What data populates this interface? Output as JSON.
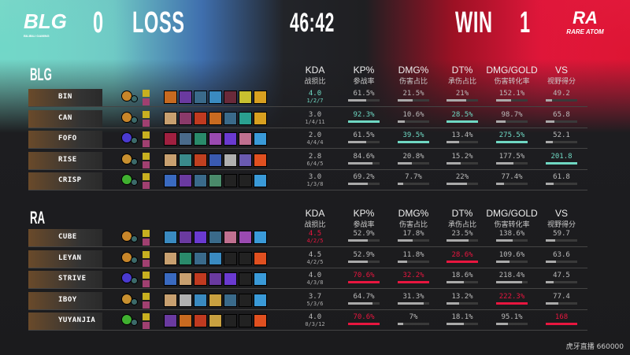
{
  "header": {
    "left_team_logo": "BLG",
    "left_team_logo_sub": "BILIBILI GAMING",
    "left_score": "0",
    "left_result": "LOSS",
    "game_time": "46:42",
    "right_result": "WIN",
    "right_score": "1",
    "right_team_logo": "RA",
    "right_team_logo_sub": "RARE ATOM"
  },
  "columns": [
    {
      "title": "KDA",
      "subtitle": "战损比"
    },
    {
      "title": "KP%",
      "subtitle": "参战率"
    },
    {
      "title": "DMG%",
      "subtitle": "伤害占比"
    },
    {
      "title": "DT%",
      "subtitle": "承伤占比"
    },
    {
      "title": "DMG/GOLD",
      "subtitle": "伤害转化率"
    },
    {
      "title": "VS",
      "subtitle": "视野得分"
    }
  ],
  "colors": {
    "blg_accent": "#6fd8c3",
    "ra_accent": "#e8163f",
    "bar": "#a8a8a8"
  },
  "teams": [
    {
      "name": "BLG",
      "accent": "#6fd8c3",
      "players": [
        {
          "name": "BIN",
          "kda": "4.0",
          "kda_detail": "1/2/7",
          "kp": "61.5%",
          "dmg": "21.5%",
          "dt": "21%",
          "dmg_gold": "152.1%",
          "vs": "49.2",
          "rune_color": "#c8862a",
          "items": [
            "#c86a20",
            "#6a3aa0",
            "#3a6a8a",
            "#3a8ac0",
            "#6a2a3a",
            "#c8c030",
            "#d8a020"
          ]
        },
        {
          "name": "CAN",
          "kda": "3.0",
          "kda_detail": "1/4/11",
          "kp": "92.3%",
          "dmg": "10.6%",
          "dt": "28.5%",
          "dmg_gold": "98.7%",
          "vs": "65.8",
          "rune_color": "#c8862a",
          "items": [
            "#c8a070",
            "#8a3a6a",
            "#c03a20",
            "#c86a20",
            "#3a6a8a",
            "#2aa090",
            "#d8a020"
          ]
        },
        {
          "name": "FOFO",
          "kda": "2.0",
          "kda_detail": "4/4/4",
          "kp": "61.5%",
          "dmg": "39.5%",
          "dt": "13.4%",
          "dmg_gold": "275.5%",
          "vs": "52.1",
          "rune_color": "#4a3ad0",
          "items": [
            "#a02040",
            "#4a6a8a",
            "#2a8a6a",
            "#9a4ab0",
            "#6a3ad0",
            "#c07090",
            "#3a9ad8"
          ]
        },
        {
          "name": "RISE",
          "kda": "2.8",
          "kda_detail": "6/4/5",
          "kp": "84.6%",
          "dmg": "20.8%",
          "dt": "15.2%",
          "dmg_gold": "177.5%",
          "vs": "201.8",
          "rune_color": "#c89030",
          "items": [
            "#c8a070",
            "#3a8a8a",
            "#c04020",
            "#3a5ab0",
            "#b0b0b0",
            "#6a5ab0",
            "#e05020"
          ]
        },
        {
          "name": "CRISP",
          "kda": "3.0",
          "kda_detail": "1/3/8",
          "kp": "69.2%",
          "dmg": "7.7%",
          "dt": "22%",
          "dmg_gold": "77.4%",
          "vs": "61.8",
          "rune_color": "#40b030",
          "items": [
            "#3a6ac0",
            "#6a3aa0",
            "#3a6a8a",
            "#4a8a6a",
            "#222",
            "#222",
            "#3a9ad8"
          ]
        }
      ]
    },
    {
      "name": "RA",
      "accent": "#e8163f",
      "players": [
        {
          "name": "CUBE",
          "kda": "4.5",
          "kda_detail": "4/2/5",
          "kp": "52.9%",
          "dmg": "17.8%",
          "dt": "23.5%",
          "dmg_gold": "138.6%",
          "vs": "59.7",
          "rune_color": "#c8862a",
          "items": [
            "#3a8ac0",
            "#6a3aa0",
            "#6a3ad0",
            "#3a6a8a",
            "#c07090",
            "#9a4ab0",
            "#3a9ad8"
          ]
        },
        {
          "name": "LEYAN",
          "kda": "4.5",
          "kda_detail": "4/2/5",
          "kp": "52.9%",
          "dmg": "11.8%",
          "dt": "28.6%",
          "dmg_gold": "109.6%",
          "vs": "63.6",
          "rune_color": "#c8862a",
          "items": [
            "#c8a070",
            "#2a8a6a",
            "#3a6a8a",
            "#3a8ac0",
            "#222",
            "#222",
            "#e05020"
          ]
        },
        {
          "name": "STRIVE",
          "kda": "4.0",
          "kda_detail": "4/3/8",
          "kp": "70.6%",
          "dmg": "32.2%",
          "dt": "18.6%",
          "dmg_gold": "218.4%",
          "vs": "47.5",
          "rune_color": "#4a3ad0",
          "items": [
            "#3a6ac0",
            "#c8a070",
            "#c03a20",
            "#6a3aa0",
            "#6a3ad0",
            "#222",
            "#3a9ad8"
          ]
        },
        {
          "name": "IBOY",
          "kda": "3.7",
          "kda_detail": "5/3/6",
          "kp": "64.7%",
          "dmg": "31.3%",
          "dt": "13.2%",
          "dmg_gold": "222.3%",
          "vs": "77.4",
          "rune_color": "#c89030",
          "items": [
            "#c8a070",
            "#b0b0b0",
            "#3a8ac0",
            "#c8a040",
            "#3a6a8a",
            "#222",
            "#3a9ad8"
          ]
        },
        {
          "name": "YUYANJIA",
          "kda": "4.0",
          "kda_detail": "0/3/12",
          "kp": "70.6%",
          "dmg": "7%",
          "dt": "18.1%",
          "dmg_gold": "95.1%",
          "vs": "168",
          "rune_color": "#40b030",
          "items": [
            "#6a3aa0",
            "#c86a20",
            "#c03a20",
            "#c8a040",
            "#222",
            "#222",
            "#e05020"
          ]
        }
      ]
    }
  ],
  "watermark": "虎牙直播 660000"
}
